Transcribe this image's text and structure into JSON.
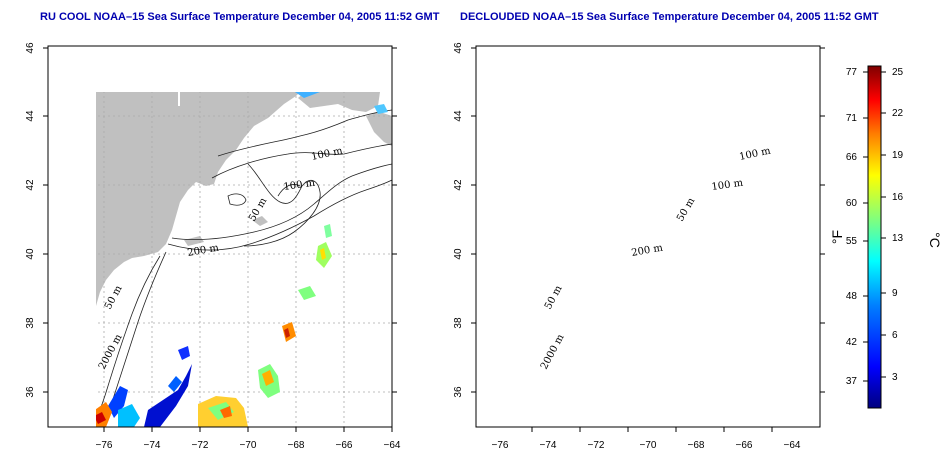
{
  "panels": [
    {
      "id": "left",
      "title": "RU COOL NOAA–15 Sea Surface Temperature December 04, 2005 11:52 GMT"
    },
    {
      "id": "right",
      "title": "DECLOUDED NOAA–15 Sea Surface Temperature December 04, 2005 11:52 GMT"
    }
  ],
  "axes": {
    "x_ticks": [
      "−76",
      "−74",
      "−72",
      "−70",
      "−68",
      "−66",
      "−64"
    ],
    "y_ticks": [
      "46",
      "44",
      "42",
      "40",
      "38",
      "36"
    ]
  },
  "contour_labels": [
    "100 m",
    "100 m",
    "50 m",
    "200 m",
    "50 m",
    "2000 m"
  ],
  "colorbar": {
    "fahrenheit_ticks": [
      "77",
      "71",
      "66",
      "60",
      "55",
      "48",
      "42",
      "37"
    ],
    "celsius_ticks": [
      "25",
      "22",
      "19",
      "16",
      "13",
      "9",
      "6",
      "3"
    ],
    "fahrenheit_unit": "°F",
    "celsius_unit": "°C",
    "colors": [
      "#00007f",
      "#0000ff",
      "#007fff",
      "#00ffff",
      "#7fff7f",
      "#ffff00",
      "#ff7f00",
      "#ff0000",
      "#7f0000"
    ]
  },
  "colors": {
    "land": "#c0c0c0",
    "title": "#0000b0",
    "grid": "#aaaaaa"
  }
}
